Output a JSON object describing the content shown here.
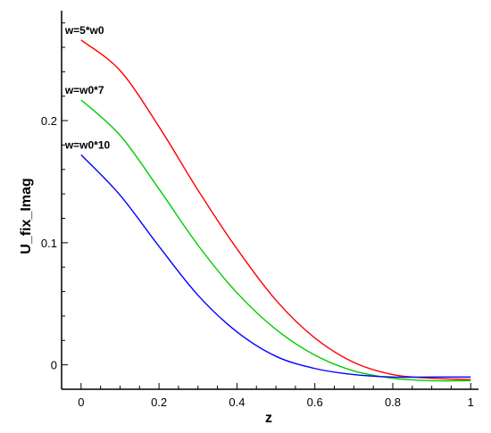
{
  "chart_data": {
    "type": "line",
    "title": "",
    "xlabel": "z",
    "ylabel": "U_fix_Imag",
    "xlim": [
      -0.05,
      1.02
    ],
    "ylim": [
      -0.02,
      0.29
    ],
    "x_ticks": [
      0,
      0.2,
      0.4,
      0.6,
      0.8,
      1
    ],
    "x_tick_labels": [
      "0",
      "0.2",
      "0.4",
      "0.6",
      "0.8",
      "1"
    ],
    "y_ticks": [
      0,
      0.1,
      0.2
    ],
    "y_tick_labels": [
      "0",
      "0.1",
      "0.2"
    ],
    "grid": false,
    "legend": "none",
    "x": [
      0,
      0.1,
      0.2,
      0.3,
      0.4,
      0.5,
      0.6,
      0.7,
      0.8,
      0.9,
      1.0
    ],
    "series": [
      {
        "name": "w=5*w0",
        "color": "#ff0000",
        "values": [
          0.266,
          0.241,
          0.195,
          0.143,
          0.095,
          0.053,
          0.022,
          0.002,
          -0.008,
          -0.011,
          -0.012
        ]
      },
      {
        "name": "w=w0*7",
        "color": "#00cc00",
        "values": [
          0.217,
          0.188,
          0.144,
          0.098,
          0.059,
          0.029,
          0.008,
          -0.005,
          -0.011,
          -0.013,
          -0.013
        ]
      },
      {
        "name": "w=w0*10",
        "color": "#0000ff",
        "values": [
          0.172,
          0.139,
          0.097,
          0.057,
          0.027,
          0.007,
          -0.003,
          -0.008,
          -0.01,
          -0.01,
          -0.01
        ]
      }
    ]
  }
}
